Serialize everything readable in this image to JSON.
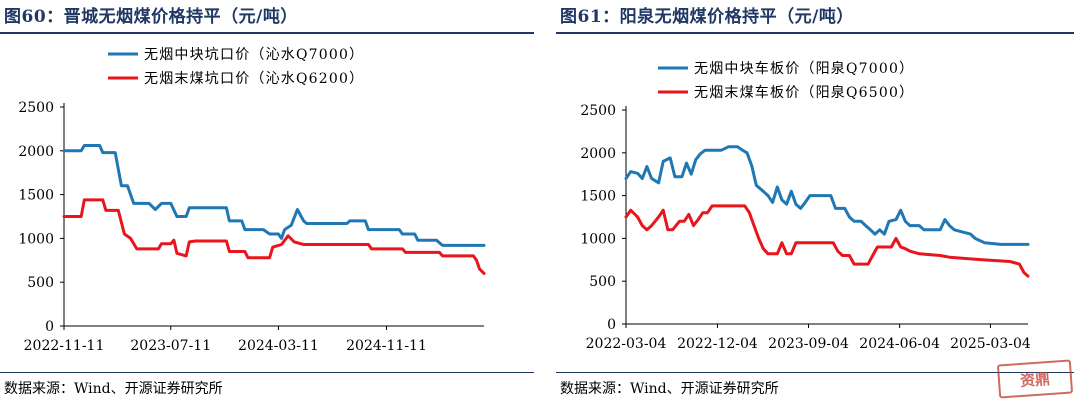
{
  "left": {
    "title": "图60：晋城无烟煤价格持平（元/吨）",
    "source": "数据来源：Wind、开源证券研究所"
  },
  "right": {
    "title": "图61：阳泉无烟煤价格持平（元/吨）",
    "source": "数据来源：Wind、开源证券研究所"
  },
  "watermark": "资鼎",
  "colors": {
    "blue": "#1f77b4",
    "red": "#e8161c",
    "navy": "#1f3864"
  },
  "chart_data": [
    {
      "type": "line",
      "title": "",
      "xlabel": "",
      "ylabel": "",
      "ylim": [
        0,
        2500
      ],
      "yticks": [
        "0",
        "500",
        "1000",
        "1500",
        "2000",
        "2500"
      ],
      "xticks": [
        "2022-11-11",
        "2023-07-11",
        "2024-03-11",
        "2024-11-11"
      ],
      "xrange": [
        "2022-11-11",
        "2025-06-20"
      ],
      "legend_position": "top-center",
      "series": [
        {
          "name": "无烟中块坑口价（沁水Q7000）",
          "color": "#1f77b4",
          "points": [
            [
              "2022-11-11",
              2000
            ],
            [
              "2022-12-20",
              2000
            ],
            [
              "2022-12-27",
              2060
            ],
            [
              "2023-01-31",
              2060
            ],
            [
              "2023-02-07",
              1980
            ],
            [
              "2023-03-07",
              1980
            ],
            [
              "2023-03-21",
              1600
            ],
            [
              "2023-04-04",
              1600
            ],
            [
              "2023-04-18",
              1400
            ],
            [
              "2023-05-23",
              1400
            ],
            [
              "2023-06-06",
              1330
            ],
            [
              "2023-06-20",
              1400
            ],
            [
              "2023-07-11",
              1400
            ],
            [
              "2023-07-25",
              1250
            ],
            [
              "2023-08-15",
              1250
            ],
            [
              "2023-08-22",
              1350
            ],
            [
              "2023-11-14",
              1350
            ],
            [
              "2023-11-21",
              1200
            ],
            [
              "2023-12-19",
              1200
            ],
            [
              "2023-12-26",
              1100
            ],
            [
              "2024-02-06",
              1100
            ],
            [
              "2024-02-20",
              1050
            ],
            [
              "2024-03-11",
              1050
            ],
            [
              "2024-03-18",
              1000
            ],
            [
              "2024-03-25",
              1100
            ],
            [
              "2024-04-09",
              1150
            ],
            [
              "2024-04-23",
              1330
            ],
            [
              "2024-05-07",
              1200
            ],
            [
              "2024-05-14",
              1170
            ],
            [
              "2024-08-13",
              1170
            ],
            [
              "2024-08-20",
              1200
            ],
            [
              "2024-09-24",
              1200
            ],
            [
              "2024-10-01",
              1100
            ],
            [
              "2024-12-10",
              1100
            ],
            [
              "2024-12-17",
              1050
            ],
            [
              "2025-01-14",
              1050
            ],
            [
              "2025-01-21",
              980
            ],
            [
              "2025-03-04",
              980
            ],
            [
              "2025-03-18",
              920
            ],
            [
              "2025-06-20",
              920
            ]
          ]
        },
        {
          "name": "无烟末煤坑口价（沁水Q6200）",
          "color": "#e8161c",
          "points": [
            [
              "2022-11-11",
              1250
            ],
            [
              "2022-12-20",
              1250
            ],
            [
              "2022-12-27",
              1440
            ],
            [
              "2023-02-07",
              1440
            ],
            [
              "2023-02-14",
              1320
            ],
            [
              "2023-03-14",
              1320
            ],
            [
              "2023-03-28",
              1050
            ],
            [
              "2023-04-11",
              1000
            ],
            [
              "2023-04-25",
              880
            ],
            [
              "2023-06-13",
              880
            ],
            [
              "2023-06-20",
              940
            ],
            [
              "2023-07-11",
              940
            ],
            [
              "2023-07-18",
              980
            ],
            [
              "2023-07-25",
              830
            ],
            [
              "2023-08-15",
              800
            ],
            [
              "2023-08-22",
              960
            ],
            [
              "2023-09-05",
              970
            ],
            [
              "2023-11-14",
              970
            ],
            [
              "2023-11-21",
              850
            ],
            [
              "2023-12-26",
              850
            ],
            [
              "2024-01-02",
              780
            ],
            [
              "2024-02-20",
              780
            ],
            [
              "2024-02-27",
              900
            ],
            [
              "2024-03-18",
              930
            ],
            [
              "2024-04-02",
              1030
            ],
            [
              "2024-04-16",
              960
            ],
            [
              "2024-05-07",
              930
            ],
            [
              "2024-10-01",
              930
            ],
            [
              "2024-10-08",
              880
            ],
            [
              "2024-12-17",
              880
            ],
            [
              "2024-12-24",
              840
            ],
            [
              "2025-03-11",
              840
            ],
            [
              "2025-03-18",
              800
            ],
            [
              "2025-05-27",
              800
            ],
            [
              "2025-06-03",
              750
            ],
            [
              "2025-06-10",
              650
            ],
            [
              "2025-06-20",
              600
            ]
          ]
        }
      ]
    },
    {
      "type": "line",
      "title": "",
      "xlabel": "",
      "ylabel": "",
      "ylim": [
        0,
        2500
      ],
      "yticks": [
        "0",
        "500",
        "1000",
        "1500",
        "2000",
        "2500"
      ],
      "xticks": [
        "2022-03-04",
        "2022-12-04",
        "2023-09-04",
        "2024-06-04",
        "2025-03-04"
      ],
      "xrange": [
        "2022-03-04",
        "2025-06-25"
      ],
      "legend_position": "top-center",
      "series": [
        {
          "name": "无烟中块车板价（阳泉Q7000）",
          "color": "#1f77b4",
          "points": [
            [
              "2022-03-04",
              1700
            ],
            [
              "2022-03-18",
              1780
            ],
            [
              "2022-04-08",
              1760
            ],
            [
              "2022-04-22",
              1700
            ],
            [
              "2022-05-06",
              1840
            ],
            [
              "2022-05-20",
              1700
            ],
            [
              "2022-06-10",
              1650
            ],
            [
              "2022-06-24",
              1900
            ],
            [
              "2022-07-15",
              1940
            ],
            [
              "2022-07-29",
              1720
            ],
            [
              "2022-08-19",
              1720
            ],
            [
              "2022-09-02",
              1880
            ],
            [
              "2022-09-16",
              1750
            ],
            [
              "2022-09-30",
              1920
            ],
            [
              "2022-10-14",
              1990
            ],
            [
              "2022-10-28",
              2030
            ],
            [
              "2022-12-16",
              2030
            ],
            [
              "2023-01-06",
              2070
            ],
            [
              "2023-02-03",
              2070
            ],
            [
              "2023-02-17",
              2030
            ],
            [
              "2023-03-03",
              2000
            ],
            [
              "2023-03-17",
              1850
            ],
            [
              "2023-03-31",
              1620
            ],
            [
              "2023-04-21",
              1550
            ],
            [
              "2023-05-05",
              1500
            ],
            [
              "2023-05-19",
              1420
            ],
            [
              "2023-06-02",
              1600
            ],
            [
              "2023-06-16",
              1450
            ],
            [
              "2023-06-30",
              1400
            ],
            [
              "2023-07-14",
              1550
            ],
            [
              "2023-07-28",
              1400
            ],
            [
              "2023-08-11",
              1350
            ],
            [
              "2023-08-25",
              1420
            ],
            [
              "2023-09-08",
              1500
            ],
            [
              "2023-11-10",
              1500
            ],
            [
              "2023-11-24",
              1350
            ],
            [
              "2023-12-22",
              1350
            ],
            [
              "2024-01-05",
              1250
            ],
            [
              "2024-01-19",
              1200
            ],
            [
              "2024-02-09",
              1200
            ],
            [
              "2024-02-23",
              1150
            ],
            [
              "2024-03-08",
              1100
            ],
            [
              "2024-03-22",
              1050
            ],
            [
              "2024-04-05",
              1100
            ],
            [
              "2024-04-19",
              1050
            ],
            [
              "2024-05-03",
              1200
            ],
            [
              "2024-05-24",
              1220
            ],
            [
              "2024-06-07",
              1330
            ],
            [
              "2024-06-21",
              1200
            ],
            [
              "2024-07-05",
              1150
            ],
            [
              "2024-08-02",
              1150
            ],
            [
              "2024-08-16",
              1100
            ],
            [
              "2024-10-04",
              1100
            ],
            [
              "2024-10-18",
              1220
            ],
            [
              "2024-11-01",
              1150
            ],
            [
              "2024-11-15",
              1100
            ],
            [
              "2025-01-03",
              1050
            ],
            [
              "2025-01-17",
              1000
            ],
            [
              "2025-02-14",
              950
            ],
            [
              "2025-04-04",
              930
            ],
            [
              "2025-06-25",
              930
            ]
          ]
        },
        {
          "name": "无烟末煤车板价（阳泉Q6500）",
          "color": "#e8161c",
          "points": [
            [
              "2022-03-04",
              1250
            ],
            [
              "2022-03-18",
              1330
            ],
            [
              "2022-04-08",
              1250
            ],
            [
              "2022-04-22",
              1150
            ],
            [
              "2022-05-06",
              1100
            ],
            [
              "2022-05-20",
              1150
            ],
            [
              "2022-06-10",
              1250
            ],
            [
              "2022-06-24",
              1330
            ],
            [
              "2022-07-08",
              1100
            ],
            [
              "2022-07-22",
              1100
            ],
            [
              "2022-08-12",
              1200
            ],
            [
              "2022-08-26",
              1200
            ],
            [
              "2022-09-09",
              1280
            ],
            [
              "2022-09-23",
              1150
            ],
            [
              "2022-10-07",
              1220
            ],
            [
              "2022-10-21",
              1300
            ],
            [
              "2022-11-04",
              1300
            ],
            [
              "2022-11-18",
              1380
            ],
            [
              "2023-02-24",
              1380
            ],
            [
              "2023-03-10",
              1300
            ],
            [
              "2023-03-24",
              1150
            ],
            [
              "2023-04-07",
              1000
            ],
            [
              "2023-04-21",
              880
            ],
            [
              "2023-05-05",
              820
            ],
            [
              "2023-06-02",
              820
            ],
            [
              "2023-06-16",
              950
            ],
            [
              "2023-06-30",
              820
            ],
            [
              "2023-07-14",
              820
            ],
            [
              "2023-07-28",
              950
            ],
            [
              "2023-11-17",
              950
            ],
            [
              "2023-12-01",
              850
            ],
            [
              "2023-12-15",
              800
            ],
            [
              "2024-01-05",
              800
            ],
            [
              "2024-01-19",
              700
            ],
            [
              "2024-03-01",
              700
            ],
            [
              "2024-03-15",
              800
            ],
            [
              "2024-03-29",
              900
            ],
            [
              "2024-05-10",
              900
            ],
            [
              "2024-05-24",
              1000
            ],
            [
              "2024-06-07",
              900
            ],
            [
              "2024-06-21",
              880
            ],
            [
              "2024-07-05",
              850
            ],
            [
              "2024-08-02",
              820
            ],
            [
              "2024-10-04",
              800
            ],
            [
              "2024-11-01",
              780
            ],
            [
              "2025-01-03",
              760
            ],
            [
              "2025-02-07",
              750
            ],
            [
              "2025-05-02",
              730
            ],
            [
              "2025-05-30",
              700
            ],
            [
              "2025-06-13",
              600
            ],
            [
              "2025-06-25",
              560
            ]
          ]
        }
      ]
    }
  ]
}
